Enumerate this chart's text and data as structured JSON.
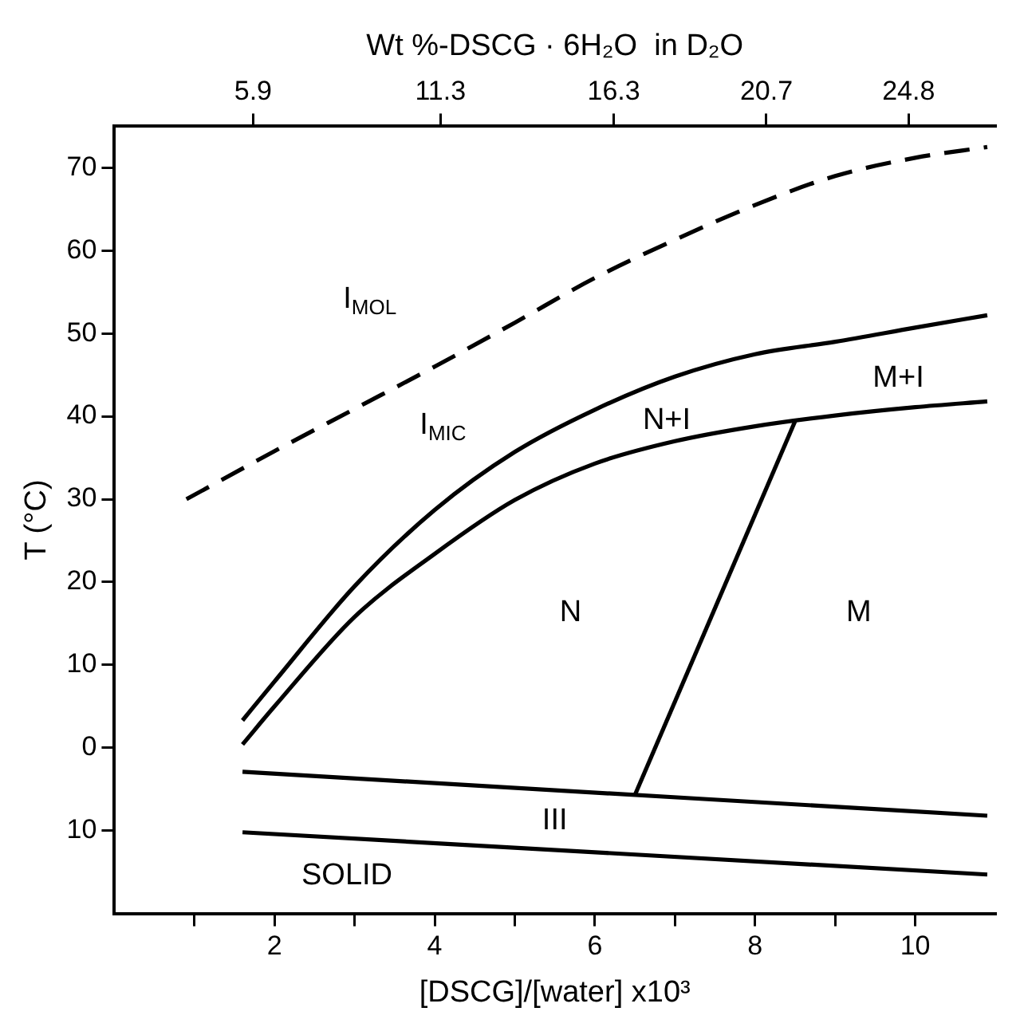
{
  "chart_data": {
    "type": "line",
    "xlabel": "[DSCG]/[water] x10³",
    "ylabel": "T (°C)",
    "x2label": "Wt %-DSCG · 6H₂O  in D₂O",
    "xlim": [
      0,
      11
    ],
    "ylim": [
      -20,
      75
    ],
    "xticks": [
      {
        "value": 1,
        "label": null
      },
      2,
      {
        "value": 3,
        "label": null
      },
      4,
      {
        "value": 5,
        "label": null
      },
      6,
      {
        "value": 7,
        "label": null
      },
      8,
      {
        "value": 9,
        "label": null
      },
      10
    ],
    "yticks": [
      {
        "value": -10,
        "label": "10"
      },
      0,
      10,
      20,
      30,
      40,
      50,
      60,
      70
    ],
    "x2lim": [
      1.9,
      27.3
    ],
    "x2ticks": [
      5.9,
      11.3,
      16.3,
      20.7,
      24.8
    ],
    "series": [
      {
        "color": "#000000",
        "line_style": "dashed",
        "x": [
          0.9,
          2,
          3,
          4,
          5,
          6,
          7,
          8,
          9,
          10,
          10.9
        ],
        "values": [
          30,
          35.8,
          40.9,
          46,
          51.3,
          56.7,
          61.3,
          65.5,
          69,
          71.2,
          72.5
        ]
      },
      {
        "color": "#000000",
        "line_style": "solid",
        "x": [
          1.6,
          2,
          3,
          4,
          5,
          6,
          7,
          8,
          9,
          10,
          10.9
        ],
        "values": [
          3.3,
          8,
          19.5,
          28.7,
          35.7,
          40.8,
          44.8,
          47.5,
          49,
          50.7,
          52.2
        ]
      },
      {
        "color": "#000000",
        "line_style": "solid",
        "x": [
          1.6,
          2,
          3,
          4,
          5,
          6,
          7,
          8,
          9,
          10,
          10.9
        ],
        "values": [
          0.4,
          5,
          15.8,
          23.4,
          29.9,
          34.3,
          37,
          38.8,
          40.1,
          41.1,
          41.8
        ]
      },
      {
        "color": "#000000",
        "line_style": "solid",
        "x": [
          6.5,
          8.5
        ],
        "values": [
          -5.7,
          39.4
        ]
      },
      {
        "color": "#000000",
        "line_style": "solid",
        "x": [
          1.6,
          10.9
        ],
        "values": [
          -2.9,
          -8.2
        ]
      },
      {
        "color": "#000000",
        "line_style": "solid",
        "x": [
          1.6,
          10.9
        ],
        "values": [
          -10.2,
          -15.3
        ]
      }
    ],
    "annotations": [
      "I$_{MOL}$",
      "I$_{MIC}$",
      "N+I",
      "M+I",
      "N",
      "M",
      "III",
      "SOLID"
    ]
  }
}
